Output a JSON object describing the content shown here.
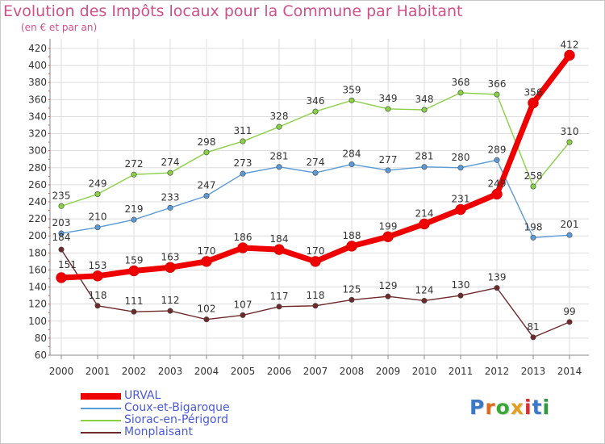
{
  "title": "Evolution des Impôts locaux pour la Commune par Habitant",
  "subtitle": "(en € et par an)",
  "logo": {
    "text": "Proxiti",
    "colors": [
      "#3a78c8",
      "#e06a1a",
      "#3aa834",
      "#e0a020",
      "#d83030",
      "#3a78c8",
      "#2a9a3a"
    ]
  },
  "chart_data": {
    "type": "line",
    "x": [
      2000,
      2001,
      2002,
      2003,
      2004,
      2005,
      2006,
      2007,
      2008,
      2009,
      2010,
      2011,
      2012,
      2013,
      2014
    ],
    "ylim": [
      60,
      420
    ],
    "yticks": [
      60,
      80,
      100,
      120,
      140,
      160,
      180,
      200,
      220,
      240,
      260,
      280,
      300,
      320,
      340,
      360,
      380,
      400,
      420
    ],
    "grid": true,
    "legend_position": "bottom-left",
    "series": [
      {
        "name": "URVAL",
        "color": "#ee0000",
        "values": [
          151,
          153,
          159,
          163,
          170,
          186,
          184,
          170,
          188,
          199,
          214,
          231,
          249,
          356,
          412
        ]
      },
      {
        "name": "Coux-et-Bigaroque",
        "color": "#5a9ad6",
        "values": [
          203,
          210,
          219,
          233,
          247,
          273,
          281,
          274,
          284,
          277,
          281,
          280,
          289,
          198,
          201
        ]
      },
      {
        "name": "Siorac-en-Périgord",
        "color": "#88d044",
        "values": [
          235,
          249,
          272,
          274,
          298,
          311,
          328,
          346,
          359,
          349,
          348,
          368,
          366,
          258,
          310
        ]
      },
      {
        "name": "Monplaisant",
        "color": "#6e2a2a",
        "values": [
          184,
          118,
          111,
          112,
          102,
          107,
          117,
          118,
          125,
          129,
          124,
          130,
          139,
          81,
          99
        ]
      }
    ]
  }
}
